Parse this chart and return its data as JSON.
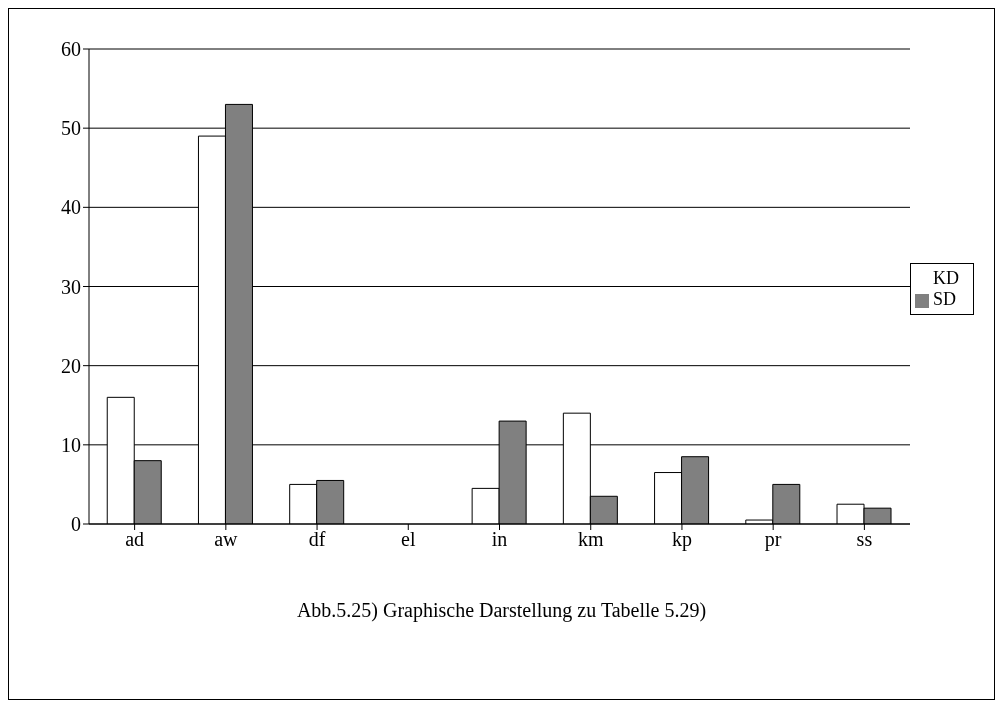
{
  "chart_data": {
    "type": "bar",
    "categories": [
      "ad",
      "aw",
      "df",
      "el",
      "in",
      "km",
      "kp",
      "pr",
      "ss"
    ],
    "series": [
      {
        "name": "KD",
        "color": "#ffffff",
        "values": [
          16,
          49,
          5,
          0,
          4.5,
          14,
          6.5,
          0.5,
          2.5
        ]
      },
      {
        "name": "SD",
        "color": "#808080",
        "values": [
          8,
          53,
          5.5,
          0,
          13,
          3.5,
          8.5,
          5,
          2
        ]
      }
    ],
    "ylim": [
      0,
      60
    ],
    "yticks": [
      0,
      10,
      20,
      30,
      40,
      50,
      60
    ],
    "grid": "y",
    "legend": "right",
    "annotations": [
      "Abb.5.25) Graphische Darstellung zu Tabelle 5.29)"
    ]
  }
}
